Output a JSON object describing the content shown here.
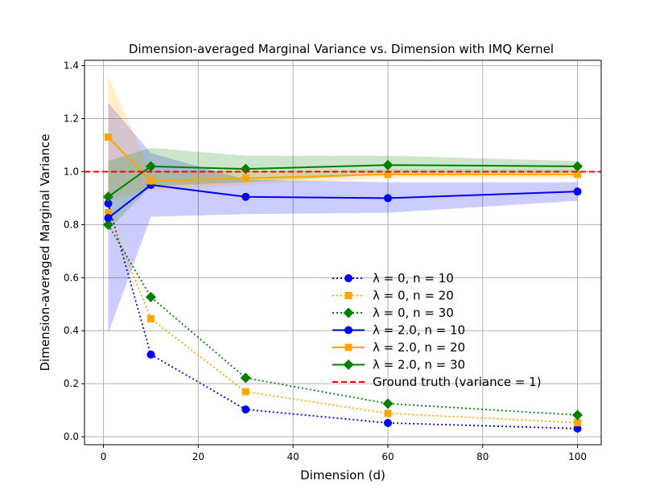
{
  "chart_data": {
    "type": "line",
    "title": "Dimension-averaged Marginal Variance vs. Dimension with IMQ Kernel",
    "xlabel": "Dimension (d)",
    "ylabel": "Dimension-averaged Marginal Variance",
    "xlim": [
      -4,
      105
    ],
    "ylim": [
      -0.03,
      1.42
    ],
    "xticks": [
      0,
      20,
      40,
      60,
      80,
      100
    ],
    "yticks": [
      0.0,
      0.2,
      0.4,
      0.6,
      0.8,
      1.0,
      1.2,
      1.4
    ],
    "xtick_labels": [
      "0",
      "20",
      "40",
      "60",
      "80",
      "100"
    ],
    "ytick_labels": [
      "0.0",
      "0.2",
      "0.4",
      "0.6",
      "0.8",
      "1.0",
      "1.2",
      "1.4"
    ],
    "grid": true,
    "legend_position": "lower-right",
    "x": [
      1,
      10,
      30,
      60,
      100
    ],
    "series": [
      {
        "label": "λ = 0, n = 10",
        "lambda": "0",
        "n": "10",
        "color": "#0000ff",
        "marker": "circle",
        "linestyle": "dotted",
        "values": [
          0.88,
          0.31,
          0.103,
          0.052,
          0.031
        ]
      },
      {
        "label": "λ = 0, n = 20",
        "lambda": "0",
        "n": "20",
        "color": "#ffa500",
        "marker": "square",
        "linestyle": "dotted",
        "values": [
          0.845,
          0.445,
          0.17,
          0.088,
          0.053
        ]
      },
      {
        "label": "λ = 0, n = 30",
        "lambda": "0",
        "n": "30",
        "color": "#008000",
        "marker": "diamond",
        "linestyle": "dotted",
        "values": [
          0.8,
          0.527,
          0.222,
          0.125,
          0.082
        ]
      },
      {
        "label": "λ = 2.0, n = 10",
        "lambda": "2.0",
        "n": "10",
        "color": "#0000ff",
        "marker": "circle",
        "linestyle": "solid",
        "values": [
          0.825,
          0.95,
          0.905,
          0.9,
          0.925
        ],
        "band_low": [
          0.39,
          0.83,
          0.84,
          0.845,
          0.89
        ],
        "band_high": [
          1.26,
          1.07,
          0.97,
          0.96,
          0.96
        ]
      },
      {
        "label": "λ = 2.0, n = 20",
        "lambda": "2.0",
        "n": "20",
        "color": "#ffa500",
        "marker": "square",
        "linestyle": "solid",
        "values": [
          1.13,
          0.965,
          0.975,
          0.99,
          0.99
        ],
        "band_low": [
          0.9,
          0.93,
          0.95,
          0.975,
          0.975
        ],
        "band_high": [
          1.36,
          1.0,
          1.0,
          1.01,
          1.01
        ]
      },
      {
        "label": "λ = 2.0, n = 30",
        "lambda": "2.0",
        "n": "30",
        "color": "#008000",
        "marker": "diamond",
        "linestyle": "solid",
        "values": [
          0.905,
          1.02,
          1.01,
          1.025,
          1.02
        ],
        "band_low": [
          0.78,
          0.945,
          0.96,
          0.99,
          0.995
        ],
        "band_high": [
          1.04,
          1.09,
          1.06,
          1.06,
          1.04
        ]
      }
    ],
    "reference_line": {
      "label": "Ground truth (variance = 1)",
      "y": 1.0,
      "color": "#ff0000",
      "linestyle": "dashed"
    }
  }
}
